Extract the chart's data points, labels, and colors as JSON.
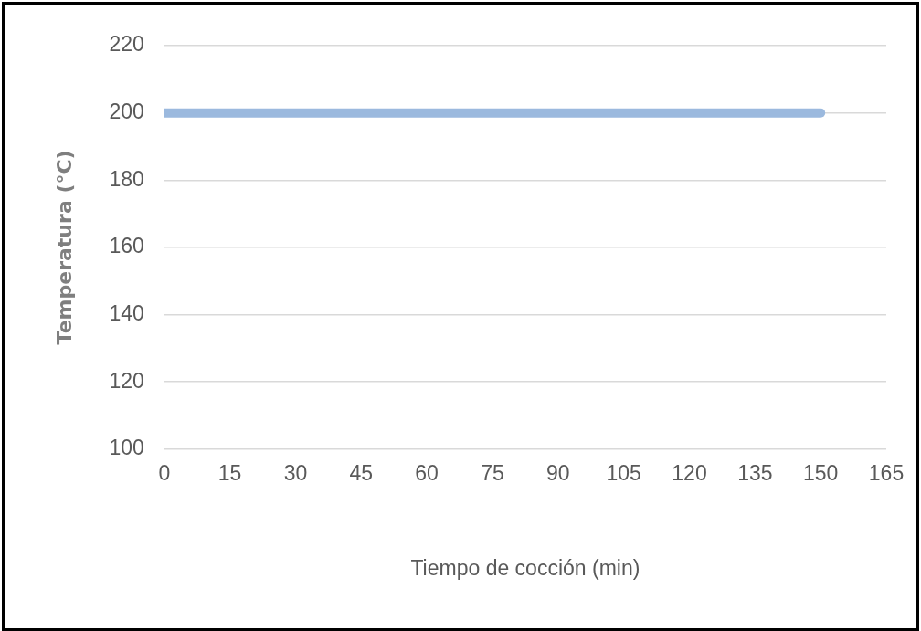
{
  "chart_data": {
    "type": "line",
    "xlabel": "Tiempo de cocción (min)",
    "ylabel": "Temperatura (°C)",
    "x": [
      0,
      150
    ],
    "series": [
      {
        "color": "#9bb9de",
        "values": [
          200,
          200
        ]
      }
    ],
    "xlim": [
      0,
      165
    ],
    "xticks": [
      0,
      15,
      30,
      45,
      60,
      75,
      90,
      105,
      120,
      135,
      150,
      165
    ],
    "ylim": [
      100,
      220
    ],
    "yticks": [
      100,
      120,
      140,
      160,
      180,
      200,
      220
    ],
    "grid": "y",
    "legend": false,
    "marker": "none",
    "line_style": "solid"
  }
}
